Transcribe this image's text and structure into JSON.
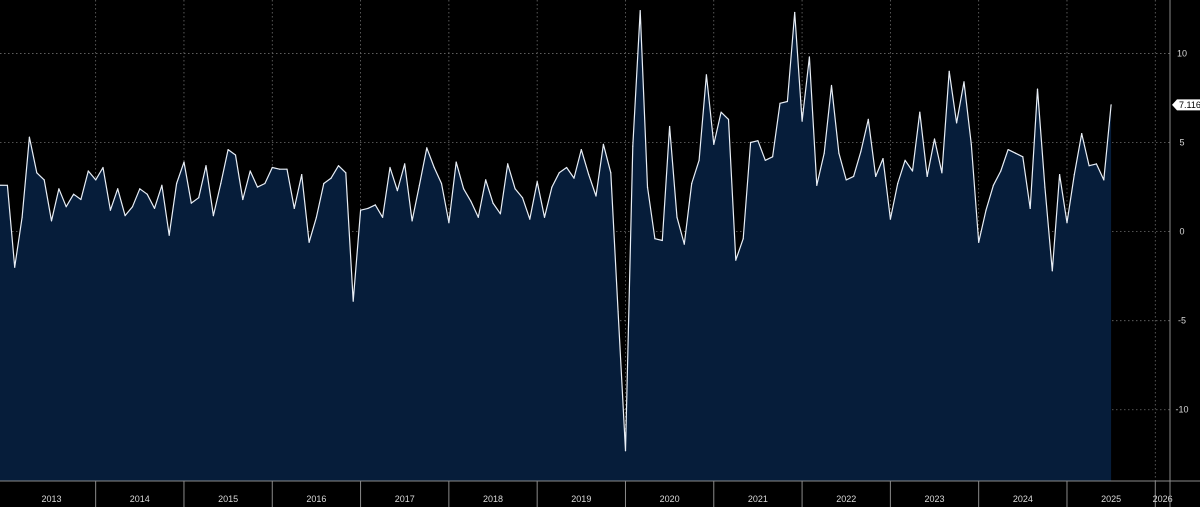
{
  "chart_data": {
    "type": "area",
    "title": "",
    "xlabel": "",
    "ylabel": "",
    "start": "2013-01",
    "frequency": "monthly",
    "x_range": [
      "2012-12",
      "2026-03"
    ],
    "ylim": [
      -14,
      13
    ],
    "y_ticks": [
      10,
      5,
      0,
      -5,
      -10
    ],
    "y_tick_labels": [
      "10",
      "5",
      "0",
      "-5",
      "-10"
    ],
    "year_labels": [
      "2013",
      "2014",
      "2015",
      "2016",
      "2017",
      "2018",
      "2019",
      "2020",
      "2021",
      "2022",
      "2023",
      "2024",
      "2025",
      "2026"
    ],
    "last_value_label": "7.116",
    "grid": true,
    "y_axis_position": "right",
    "colors": {
      "background": "#000000",
      "area_fill": "#061d3a",
      "line": "#e8eef6",
      "grid": "#6c6c6c",
      "badge": "#ffffff"
    },
    "values": [
      2.6,
      -2.0,
      0.8,
      5.3,
      3.3,
      2.9,
      0.6,
      2.4,
      1.4,
      2.1,
      1.8,
      3.4,
      2.9,
      3.6,
      1.2,
      2.4,
      0.9,
      1.4,
      2.4,
      2.1,
      1.3,
      2.6,
      -0.2,
      2.7,
      3.9,
      1.6,
      1.9,
      3.7,
      0.9,
      2.7,
      4.6,
      4.3,
      1.8,
      3.4,
      2.5,
      2.7,
      3.6,
      3.5,
      3.5,
      1.3,
      3.2,
      -0.6,
      0.8,
      2.7,
      3.0,
      3.7,
      3.3,
      -3.9,
      1.2,
      1.3,
      1.5,
      0.8,
      3.6,
      2.3,
      3.8,
      0.6,
      2.6,
      4.7,
      3.6,
      2.7,
      0.5,
      3.9,
      2.4,
      1.7,
      0.8,
      2.9,
      1.6,
      1.0,
      3.8,
      2.4,
      1.9,
      0.7,
      2.8,
      0.8,
      2.5,
      3.3,
      3.6,
      3.0,
      4.6,
      3.2,
      2.0,
      4.9,
      3.3,
      -4.5,
      -12.3,
      4.8,
      12.4,
      2.5,
      -0.4,
      -0.5,
      5.9,
      0.8,
      -0.7,
      2.7,
      4.0,
      8.8,
      4.9,
      6.7,
      6.3,
      -1.6,
      -0.4,
      5.0,
      5.1,
      4.0,
      4.2,
      7.2,
      7.3,
      12.3,
      6.2,
      9.8,
      2.6,
      4.4,
      8.2,
      4.4,
      2.9,
      3.1,
      4.5,
      6.3,
      3.1,
      4.1,
      0.7,
      2.7,
      4.0,
      3.4,
      6.7,
      3.1,
      5.2,
      3.3,
      9.0,
      6.1,
      8.4,
      4.9,
      -0.6,
      1.2,
      2.6,
      3.4,
      4.6,
      4.4,
      4.2,
      1.3,
      8.0,
      2.5,
      -2.2,
      3.2,
      0.5,
      3.2,
      5.5,
      3.7,
      3.8,
      2.9,
      7.116
    ]
  }
}
